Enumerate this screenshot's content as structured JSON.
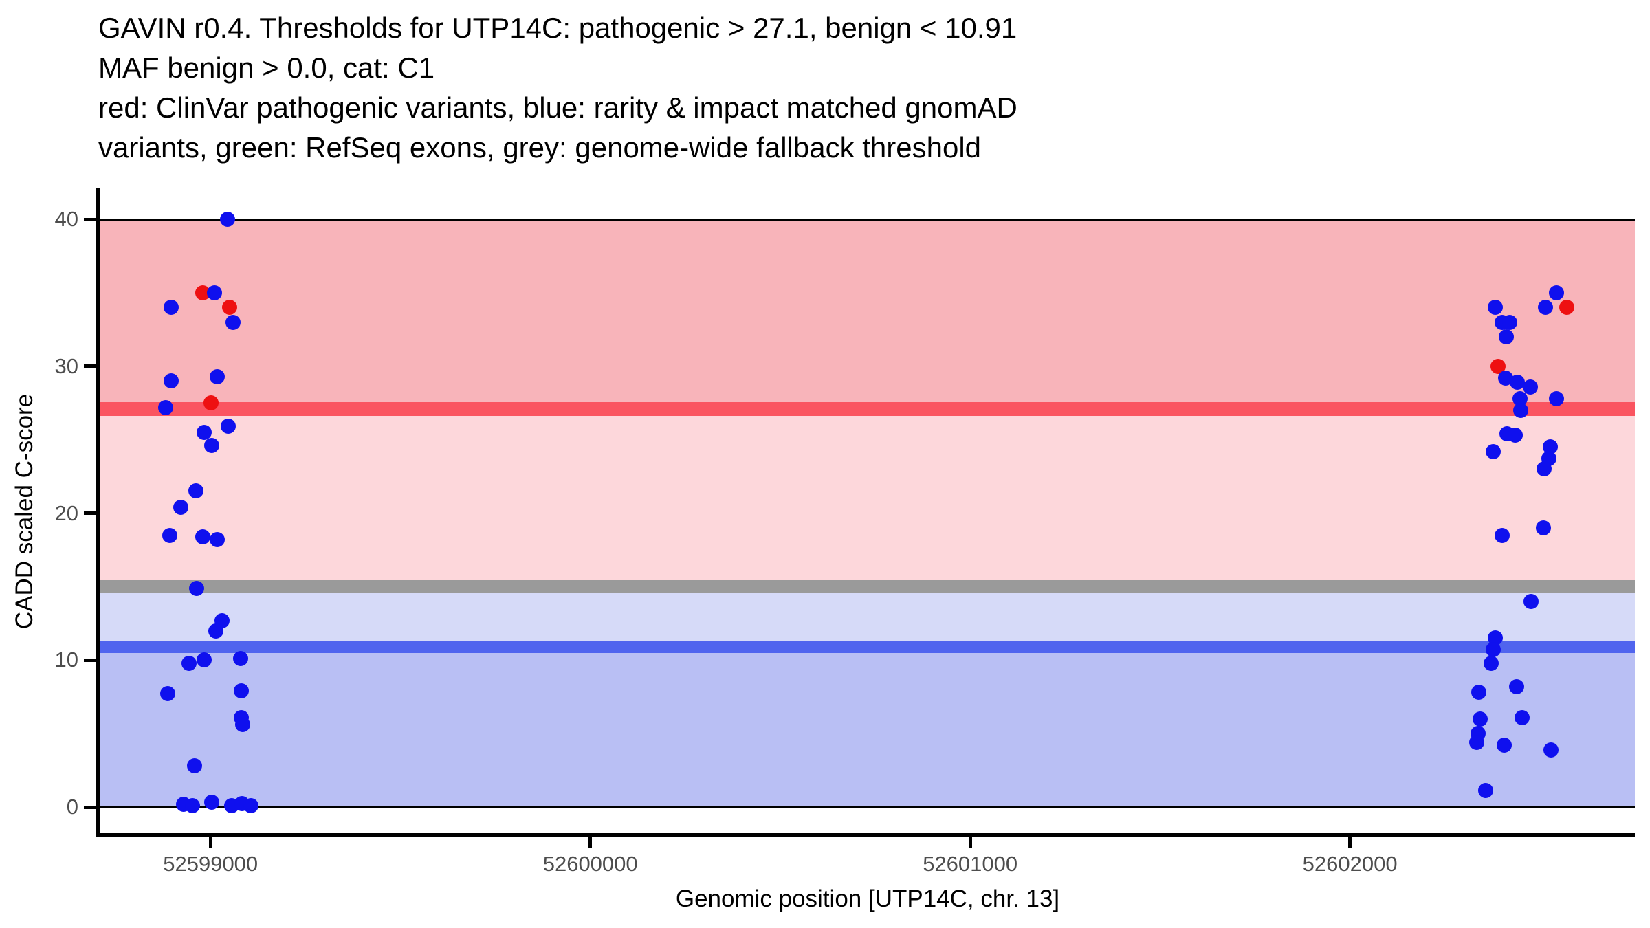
{
  "title_lines": [
    "GAVIN r0.4. Thresholds for UTP14C: pathogenic > 27.1, benign < 10.91",
    "MAF benign > 0.0, cat: C1",
    "red: ClinVar pathogenic variants, blue: rarity & impact matched gnomAD",
    "variants, green: RefSeq exons, grey: genome-wide fallback threshold"
  ],
  "axes": {
    "x": {
      "label": "Genomic position [UTP14C, chr. 13]",
      "ticks": [
        52599000,
        52600000,
        52601000,
        52602000
      ],
      "min": 52598710,
      "max": 52602750
    },
    "y": {
      "label": "CADD scaled C-score",
      "ticks": [
        0,
        10,
        20,
        30,
        40
      ],
      "min": 0,
      "max": 40
    }
  },
  "thresholds": {
    "pathogenic": 27.1,
    "benign": 10.91,
    "genome_wide_fallback": 15,
    "maf_benign": 0.0,
    "category": "C1",
    "gene": "UTP14C",
    "chromosome": "13"
  },
  "colors": {
    "band_pathogenic": "#f8b4ba",
    "band_uncertain_upper": "#fdd7db",
    "band_uncertain_lower": "#d6daf8",
    "band_benign": "#b9bff4",
    "line_pathogenic": "#fa5460",
    "line_fallback": "#9a9a9a",
    "line_benign": "#5064ee",
    "line_edge": "#000000",
    "point_red": "#ee1011",
    "point_blue": "#0f10ee",
    "tick_label": "#4d4d4d"
  },
  "chart_data": {
    "type": "scatter",
    "title": "GAVIN r0.4. Thresholds for UTP14C: pathogenic > 27.1, benign < 10.91 | MAF benign > 0.0, cat: C1",
    "xlabel": "Genomic position [UTP14C, chr. 13]",
    "ylabel": "CADD scaled C-score",
    "xlim": [
      52598710,
      52602750
    ],
    "ylim": [
      0,
      40
    ],
    "grid": false,
    "legend": "none",
    "bands": [
      {
        "name": "pathogenic-zone",
        "from": 27.1,
        "to": 40,
        "color_key": "band_pathogenic"
      },
      {
        "name": "uncertain-upper-zone",
        "from": 15,
        "to": 27.1,
        "color_key": "band_uncertain_upper"
      },
      {
        "name": "uncertain-lower-zone",
        "from": 10.91,
        "to": 15,
        "color_key": "band_uncertain_lower"
      },
      {
        "name": "benign-zone",
        "from": 0,
        "to": 10.91,
        "color_key": "band_benign"
      }
    ],
    "hlines": [
      {
        "name": "fallback-threshold-band",
        "y": 15,
        "color_key": "line_fallback",
        "thickness_px": 19
      },
      {
        "name": "pathogenic-threshold-line",
        "y": 27.1,
        "color_key": "line_pathogenic",
        "thickness_px": 20
      },
      {
        "name": "benign-threshold-line",
        "y": 10.91,
        "color_key": "line_benign",
        "thickness_px": 18
      },
      {
        "name": "ymax-edge-line",
        "y": 40,
        "color_key": "line_edge",
        "thickness_px": 3
      },
      {
        "name": "ymin-edge-line",
        "y": 0,
        "color_key": "line_edge",
        "thickness_px": 3
      }
    ],
    "series": [
      {
        "name": "ClinVar pathogenic variants",
        "color_key": "point_red",
        "points": [
          [
            52598980,
            35.0
          ],
          [
            52599051,
            34.0
          ],
          [
            52599002,
            27.5
          ],
          [
            52602389,
            30.0
          ],
          [
            52602571,
            34.0
          ]
        ]
      },
      {
        "name": "rarity & impact matched gnomAD variants",
        "color_key": "point_blue",
        "points": [
          [
            52599045,
            40.0
          ],
          [
            52599011,
            35.0
          ],
          [
            52598897,
            34.0
          ],
          [
            52599060,
            33.0
          ],
          [
            52598897,
            29.0
          ],
          [
            52599018,
            29.3
          ],
          [
            52598882,
            27.2
          ],
          [
            52599047,
            25.9
          ],
          [
            52598984,
            25.5
          ],
          [
            52599004,
            24.6
          ],
          [
            52598962,
            21.5
          ],
          [
            52598922,
            20.4
          ],
          [
            52598893,
            18.5
          ],
          [
            52598980,
            18.4
          ],
          [
            52599018,
            18.2
          ],
          [
            52598964,
            14.9
          ],
          [
            52599031,
            12.7
          ],
          [
            52599014,
            12.0
          ],
          [
            52598984,
            10.0
          ],
          [
            52598944,
            9.8
          ],
          [
            52599080,
            10.1
          ],
          [
            52598888,
            7.7
          ],
          [
            52599081,
            7.9
          ],
          [
            52599081,
            6.1
          ],
          [
            52599085,
            5.6
          ],
          [
            52598958,
            2.8
          ],
          [
            52598929,
            0.2
          ],
          [
            52598953,
            0.1
          ],
          [
            52599004,
            0.35
          ],
          [
            52599056,
            0.1
          ],
          [
            52599083,
            0.25
          ],
          [
            52599107,
            0.1
          ],
          [
            52602544,
            35.0
          ],
          [
            52602382,
            34.0
          ],
          [
            52602515,
            34.0
          ],
          [
            52602400,
            33.0
          ],
          [
            52602420,
            33.0
          ],
          [
            52602411,
            32.0
          ],
          [
            52602409,
            29.2
          ],
          [
            52602440,
            28.9
          ],
          [
            52602474,
            28.6
          ],
          [
            52602447,
            27.8
          ],
          [
            52602544,
            27.8
          ],
          [
            52602449,
            27.0
          ],
          [
            52602413,
            25.4
          ],
          [
            52602435,
            25.3
          ],
          [
            52602378,
            24.2
          ],
          [
            52602528,
            24.5
          ],
          [
            52602524,
            23.7
          ],
          [
            52602511,
            23.0
          ],
          [
            52602509,
            19.0
          ],
          [
            52602400,
            18.5
          ],
          [
            52602476,
            14.0
          ],
          [
            52602382,
            11.5
          ],
          [
            52602377,
            10.7
          ],
          [
            52602371,
            9.8
          ],
          [
            52602438,
            8.2
          ],
          [
            52602339,
            7.8
          ],
          [
            52602342,
            6.0
          ],
          [
            52602453,
            6.1
          ],
          [
            52602337,
            5.0
          ],
          [
            52602333,
            4.4
          ],
          [
            52602406,
            4.2
          ],
          [
            52602529,
            3.9
          ],
          [
            52602357,
            1.1
          ]
        ]
      }
    ]
  }
}
